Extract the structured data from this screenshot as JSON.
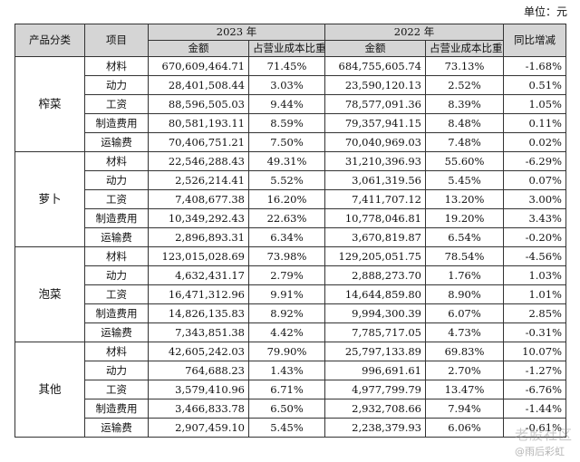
{
  "unit_label": "单位：元",
  "headers": {
    "category": "产品分类",
    "item": "项目",
    "year_2023": "2023 年",
    "year_2022": "2022 年",
    "yoy": "同比增减",
    "amount": "金额",
    "share": "占营业成本比重"
  },
  "groups": [
    {
      "category": "榨菜",
      "rows": [
        {
          "item": "材料",
          "amount_2023": "670,609,464.71",
          "share_2023": "71.45%",
          "amount_2022": "684,755,605.74",
          "share_2022": "73.13%",
          "yoy": "-1.68%"
        },
        {
          "item": "动力",
          "amount_2023": "28,401,508.44",
          "share_2023": "3.03%",
          "amount_2022": "23,590,120.13",
          "share_2022": "2.52%",
          "yoy": "0.51%"
        },
        {
          "item": "工资",
          "amount_2023": "88,596,505.03",
          "share_2023": "9.44%",
          "amount_2022": "78,577,091.36",
          "share_2022": "8.39%",
          "yoy": "1.05%"
        },
        {
          "item": "制造费用",
          "amount_2023": "80,581,193.11",
          "share_2023": "8.59%",
          "amount_2022": "79,357,941.15",
          "share_2022": "8.48%",
          "yoy": "0.11%"
        },
        {
          "item": "运输费",
          "amount_2023": "70,406,751.21",
          "share_2023": "7.50%",
          "amount_2022": "70,040,969.03",
          "share_2022": "7.48%",
          "yoy": "0.02%"
        }
      ]
    },
    {
      "category": "萝卜",
      "rows": [
        {
          "item": "材料",
          "amount_2023": "22,546,288.43",
          "share_2023": "49.31%",
          "amount_2022": "31,210,396.93",
          "share_2022": "55.60%",
          "yoy": "-6.29%"
        },
        {
          "item": "动力",
          "amount_2023": "2,526,214.41",
          "share_2023": "5.52%",
          "amount_2022": "3,061,319.56",
          "share_2022": "5.45%",
          "yoy": "0.07%"
        },
        {
          "item": "工资",
          "amount_2023": "7,408,677.38",
          "share_2023": "16.20%",
          "amount_2022": "7,411,707.12",
          "share_2022": "13.20%",
          "yoy": "3.00%"
        },
        {
          "item": "制造费用",
          "amount_2023": "10,349,292.43",
          "share_2023": "22.63%",
          "amount_2022": "10,778,046.81",
          "share_2022": "19.20%",
          "yoy": "3.43%"
        },
        {
          "item": "运输费",
          "amount_2023": "2,896,893.31",
          "share_2023": "6.34%",
          "amount_2022": "3,670,819.87",
          "share_2022": "6.54%",
          "yoy": "-0.20%"
        }
      ]
    },
    {
      "category": "泡菜",
      "rows": [
        {
          "item": "材料",
          "amount_2023": "123,015,028.69",
          "share_2023": "73.98%",
          "amount_2022": "129,205,051.75",
          "share_2022": "78.54%",
          "yoy": "-4.56%"
        },
        {
          "item": "动力",
          "amount_2023": "4,632,431.17",
          "share_2023": "2.79%",
          "amount_2022": "2,888,273.70",
          "share_2022": "1.76%",
          "yoy": "1.03%"
        },
        {
          "item": "工资",
          "amount_2023": "16,471,312.96",
          "share_2023": "9.91%",
          "amount_2022": "14,644,859.80",
          "share_2022": "8.90%",
          "yoy": "1.01%"
        },
        {
          "item": "制造费用",
          "amount_2023": "14,826,135.83",
          "share_2023": "8.92%",
          "amount_2022": "9,994,300.39",
          "share_2022": "6.07%",
          "yoy": "2.85%"
        },
        {
          "item": "运输费",
          "amount_2023": "7,343,851.38",
          "share_2023": "4.42%",
          "amount_2022": "7,785,717.05",
          "share_2022": "4.73%",
          "yoy": "-0.31%"
        }
      ]
    },
    {
      "category": "其他",
      "rows": [
        {
          "item": "材料",
          "amount_2023": "42,605,242.03",
          "share_2023": "79.90%",
          "amount_2022": "25,797,133.89",
          "share_2022": "69.83%",
          "yoy": "10.07%"
        },
        {
          "item": "动力",
          "amount_2023": "764,688.23",
          "share_2023": "1.43%",
          "amount_2022": "996,691.61",
          "share_2022": "2.70%",
          "yoy": "-1.27%"
        },
        {
          "item": "工资",
          "amount_2023": "3,579,410.96",
          "share_2023": "6.71%",
          "amount_2022": "4,977,799.79",
          "share_2022": "13.47%",
          "yoy": "-6.76%"
        },
        {
          "item": "制造费用",
          "amount_2023": "3,466,833.78",
          "share_2023": "6.50%",
          "amount_2022": "2,932,708.66",
          "share_2022": "7.94%",
          "yoy": "-1.44%"
        },
        {
          "item": "运输费",
          "amount_2023": "2,907,459.10",
          "share_2023": "5.45%",
          "amount_2022": "2,238,379.93",
          "share_2022": "6.06%",
          "yoy": "-0.61%"
        }
      ]
    }
  ],
  "watermark": {
    "title": "老股社区",
    "subtitle": "@雨后彩虹"
  }
}
